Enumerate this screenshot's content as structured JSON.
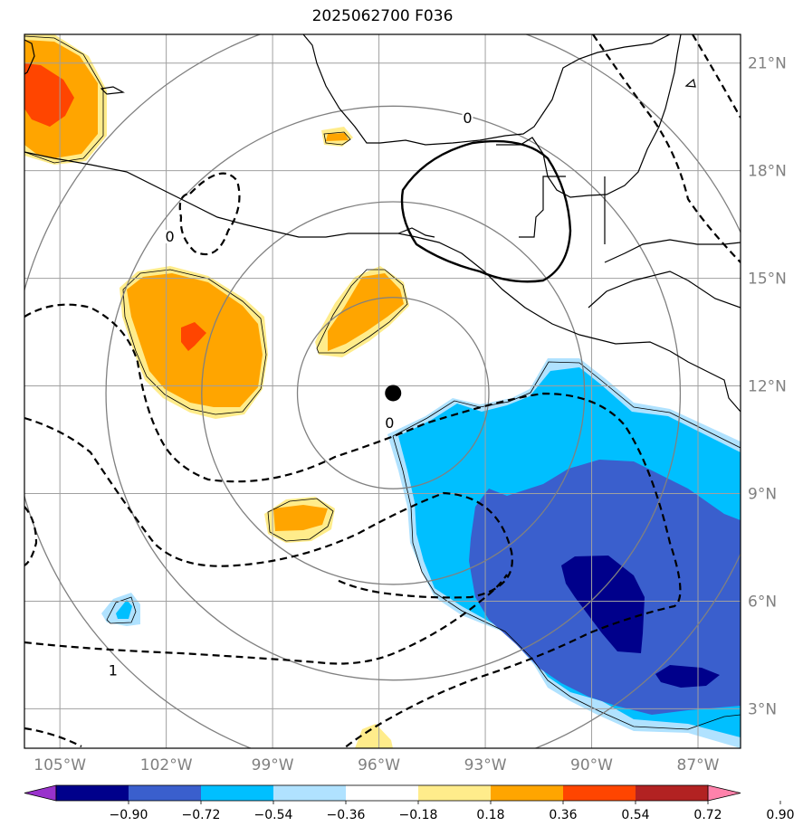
{
  "map": {
    "title": "2025062700 F036",
    "extent": {
      "lon_min": -106,
      "lon_max": -85.8,
      "lat_min": 1.9,
      "lat_max": 21.8
    },
    "center_marker": {
      "lon": -95.6,
      "lat": 11.8,
      "color": "#000000"
    },
    "lon_ticks": [
      {
        "lon": -105,
        "label": "105°W"
      },
      {
        "lon": -102,
        "label": "102°W"
      },
      {
        "lon": -99,
        "label": "99°W"
      },
      {
        "lon": -96,
        "label": "96°W"
      },
      {
        "lon": -93,
        "label": "93°W"
      },
      {
        "lon": -90,
        "label": "90°W"
      },
      {
        "lon": -87,
        "label": "87°W"
      }
    ],
    "lat_ticks": [
      {
        "lat": 21,
        "label": "21°N"
      },
      {
        "lat": 18,
        "label": "18°N"
      },
      {
        "lat": 15,
        "label": "15°N"
      },
      {
        "lat": 12,
        "label": "12°N"
      },
      {
        "lat": 9,
        "label": "9°N"
      },
      {
        "lat": 6,
        "label": "6°N"
      },
      {
        "lat": 3,
        "label": "3°N"
      }
    ],
    "range_rings_deg": [
      2.7,
      5.4,
      8.1,
      10.8
    ],
    "contour_labels": [
      {
        "text": "0",
        "lon": -93.5,
        "lat": 19.4
      },
      {
        "text": "0",
        "lon": -101.9,
        "lat": 16.1
      },
      {
        "text": "0",
        "lon": -95.7,
        "lat": 10.9
      },
      {
        "text": "1",
        "lon": -103.5,
        "lat": 4.0
      }
    ]
  },
  "colorbar": {
    "colors": [
      "#9932cc",
      "#00008b",
      "#3a5fcd",
      "#00bfff",
      "#b0e2ff",
      "#ffffff",
      "#ffec8b",
      "#ffa500",
      "#ff4500",
      "#b22222",
      "#ff82ab"
    ],
    "ticks": [
      "−0.90",
      "−0.72",
      "−0.54",
      "−0.36",
      "−0.18",
      "0.18",
      "0.36",
      "0.54",
      "0.72",
      "0.90"
    ]
  },
  "colors": {
    "grid": "#a0a0a0",
    "rings": "#808080",
    "coast": "#000000"
  }
}
